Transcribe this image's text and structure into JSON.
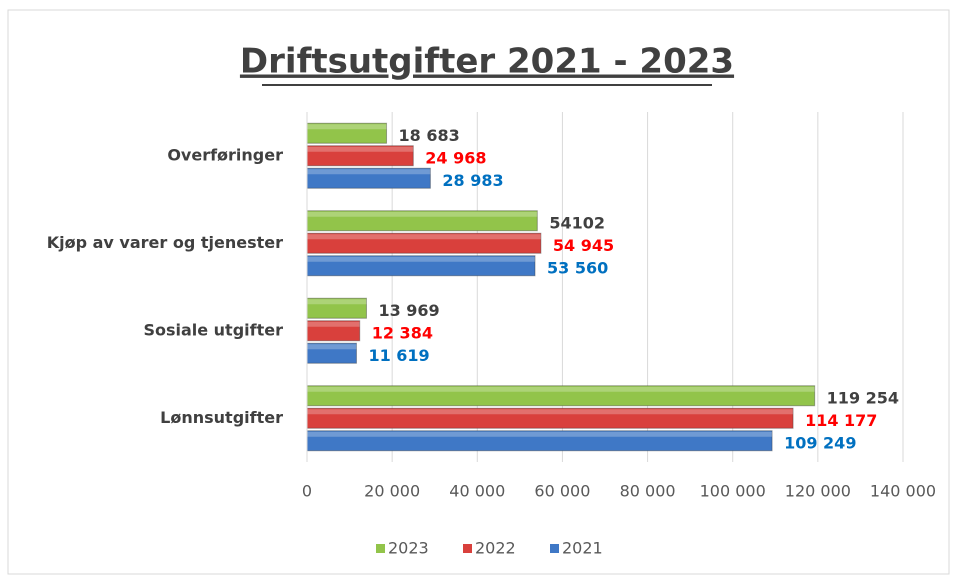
{
  "chart_data": {
    "type": "hbar",
    "title": "Driftsutgifter 2021 - 2023",
    "categories": [
      "Overføringer",
      "Kjøp av varer og tjenester",
      "Sosiale utgifter",
      "Lønnsutgifter"
    ],
    "series": [
      {
        "name": "2023",
        "color": "#92c44a",
        "label_color": "#404040",
        "values": [
          18683,
          54102,
          13969,
          119254
        ],
        "value_labels": [
          "18 683",
          "54102",
          "13 969",
          "119 254"
        ]
      },
      {
        "name": "2022",
        "color": "#d9403c",
        "label_color": "#ff0000",
        "values": [
          24968,
          54945,
          12384,
          114177
        ],
        "value_labels": [
          "24 968",
          "54 945",
          "12 384",
          "114 177"
        ]
      },
      {
        "name": "2021",
        "color": "#3f78c6",
        "label_color": "#0070c0",
        "values": [
          28983,
          53560,
          11619,
          109249
        ],
        "value_labels": [
          "28 983",
          "53 560",
          "11 619",
          "109 249"
        ]
      }
    ],
    "xlim": [
      0,
      140000
    ],
    "xticks": [
      0,
      {
        "value": 20000,
        "label": "20 000"
      },
      {
        "value": 40000,
        "label": "40 000"
      },
      {
        "value": 60000,
        "label": "60 000"
      },
      {
        "value": 80000,
        "label": "80 000"
      },
      {
        "value": 100000,
        "label": "100 000"
      },
      {
        "value": 120000,
        "label": "120 000"
      },
      {
        "value": 140000,
        "label": "140 000"
      }
    ],
    "grid": true,
    "legend": "bottom"
  }
}
